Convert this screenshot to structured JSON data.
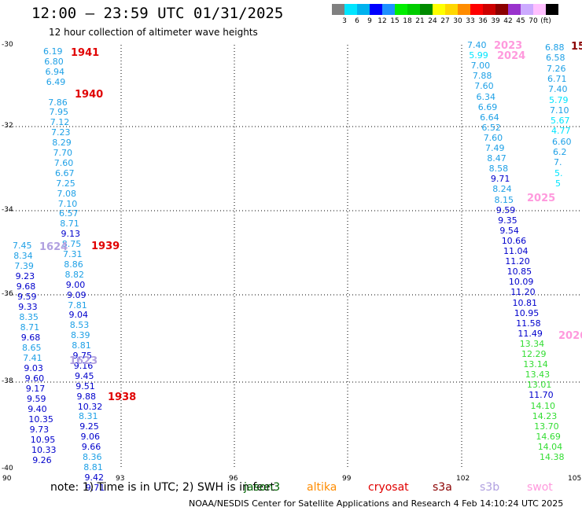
{
  "title": "12:00 – 23:59 UTC 01/31/2025",
  "subtitle": "12 hour collection of altimeter wave heights",
  "colorbar": {
    "unit": "(ft)",
    "labels": [
      "3",
      "6",
      "9",
      "12",
      "15",
      "18",
      "21",
      "24",
      "27",
      "30",
      "33",
      "36",
      "39",
      "42",
      "45",
      "70"
    ],
    "colors": [
      "#808080",
      "#00e5ff",
      "#00b2ee",
      "#0000ff",
      "#1e90ff",
      "#00ee00",
      "#00cd00",
      "#008b00",
      "#ffff00",
      "#ffd700",
      "#ff8c00",
      "#ff0000",
      "#cd0000",
      "#8b0000",
      "#9932cc",
      "#ccaaff",
      "#ffc0ff",
      "#000000"
    ]
  },
  "axes": {
    "y_ticks": [
      "-30",
      "-32",
      "-34",
      "-36",
      "-38",
      "-40"
    ],
    "x_ticks": [
      "90",
      "93",
      "96",
      "99",
      "102",
      "105"
    ]
  },
  "note": "note:  1) Time is in UTC;  2) SWH is in feet",
  "satellites": [
    {
      "name": "jason3",
      "color": "#006400"
    },
    {
      "name": "altika",
      "color": "#ff8c00"
    },
    {
      "name": "cryosat",
      "color": "#e00000"
    },
    {
      "name": "s3a",
      "color": "#8b0000"
    },
    {
      "name": "s3b",
      "color": "#b0a0e0"
    },
    {
      "name": "swot",
      "color": "#ff99dd"
    }
  ],
  "footer": "NOAA/NESDIS Center for Satellite Applications and Research     4 Feb 14:10:24 UTC 2025",
  "tracks": [
    {
      "name": "track-a",
      "values": [
        "6.19",
        "6.80",
        "6.94",
        "6.49",
        "",
        "7.86",
        "7.95",
        "7.12",
        "7.23",
        "8.29",
        "7.70",
        "7.60",
        "6.67",
        "7.25",
        "7.08",
        "7.10",
        "6.57",
        "8.71",
        "9.13",
        "8.75",
        "7.31",
        "8.86",
        "8.82",
        "9.00",
        "9.09",
        "7.81",
        "9.04",
        "8.53",
        "8.39",
        "8.81",
        "9.75",
        "9.16",
        "9.45",
        "9.51",
        "9.88",
        "10.32",
        "8.31",
        "9.25",
        "9.06",
        "9.66",
        "8.36",
        "8.81",
        "9.42",
        "9.71"
      ]
    },
    {
      "name": "track-b",
      "values": [
        "7.45",
        "8.34",
        "7.39",
        "9.23",
        "9.68",
        "9.59",
        "9.33",
        "8.35",
        "8.71",
        "9.68",
        "8.65",
        "7.41",
        "9.03",
        "9.60",
        "9.17",
        "9.59",
        "9.40",
        "10.35",
        "9.73",
        "10.95",
        "10.33",
        "9.26"
      ]
    },
    {
      "name": "track-c",
      "values": [
        "7.40",
        "5.99",
        "7.00",
        "7.88",
        "7.60",
        "6.34",
        "6.69",
        "6.64",
        "6.52",
        "7.60",
        "7.49",
        "8.47",
        "8.58",
        "9.71",
        "8.24",
        "8.15",
        "9.59",
        "9.35",
        "9.54",
        "10.66",
        "11.04",
        "11.20",
        "10.85",
        "10.09",
        "11.20",
        "10.81",
        "10.95",
        "11.58",
        "11.49",
        "13.34",
        "12.29",
        "13.14",
        "13.43",
        "13.01",
        "11.70",
        "14.10",
        "14.23",
        "13.70",
        "14.69",
        "14.04",
        "14.38"
      ]
    },
    {
      "name": "track-d",
      "values": [
        "6.88",
        "6.58",
        "7.26",
        "6.71",
        "7.40",
        "5.79",
        "7.10",
        "5.67",
        "4.77",
        "6.60",
        "6.2",
        "7.",
        "5.",
        "5"
      ]
    }
  ],
  "time_labels": [
    {
      "text": "1941",
      "color": "#e00000"
    },
    {
      "text": "1940",
      "color": "#e00000"
    },
    {
      "text": "1939",
      "color": "#e00000"
    },
    {
      "text": "1938",
      "color": "#e00000"
    },
    {
      "text": "1624",
      "color": "#b0a0e0"
    },
    {
      "text": "1623",
      "color": "#b0a0e0"
    },
    {
      "text": "2023",
      "color": "#ff99dd"
    },
    {
      "text": "2024",
      "color": "#ff99dd"
    },
    {
      "text": "2025",
      "color": "#ff99dd"
    },
    {
      "text": "2026",
      "color": "#ff99dd"
    },
    {
      "text": "15",
      "color": "#8b0000"
    }
  ]
}
